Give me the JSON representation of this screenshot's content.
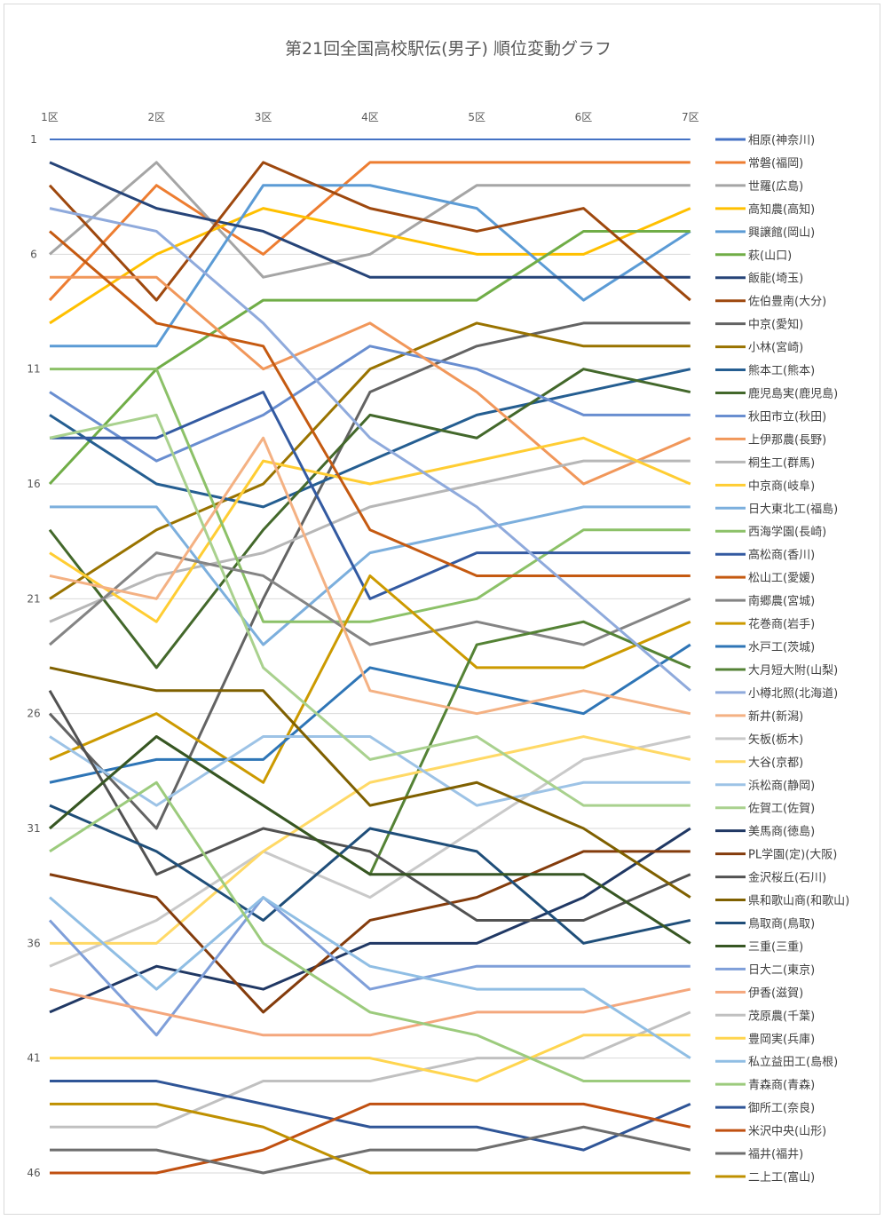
{
  "chart_data": {
    "type": "line",
    "title": "第21回全国高校駅伝(男子) 順位変動グラフ",
    "xlabel": "",
    "ylabel": "",
    "categories": [
      "1区",
      "2区",
      "3区",
      "4区",
      "5区",
      "6区",
      "7区"
    ],
    "y_ticks": [
      "1",
      "6",
      "11",
      "16",
      "21",
      "26",
      "31",
      "36",
      "41",
      "46"
    ],
    "ylim": [
      1,
      46
    ],
    "y_inverted": true,
    "grid": true,
    "legend": "right",
    "series": [
      {
        "name": "相原(神奈川)",
        "color": "#4472C4",
        "values": [
          1,
          1,
          1,
          1,
          1,
          1,
          1
        ]
      },
      {
        "name": "常磐(福岡)",
        "color": "#ED7D31",
        "values": [
          8,
          3,
          6,
          2,
          2,
          2,
          2
        ]
      },
      {
        "name": "世羅(広島)",
        "color": "#A5A5A5",
        "values": [
          6,
          2,
          7,
          6,
          3,
          3,
          3
        ]
      },
      {
        "name": "高知農(高知)",
        "color": "#FFC000",
        "values": [
          9,
          6,
          4,
          5,
          6,
          6,
          4
        ]
      },
      {
        "name": "興譲館(岡山)",
        "color": "#5B9BD5",
        "values": [
          10,
          10,
          3,
          3,
          4,
          8,
          5
        ]
      },
      {
        "name": "萩(山口)",
        "color": "#70AD47",
        "values": [
          16,
          11,
          8,
          8,
          8,
          5,
          5
        ]
      },
      {
        "name": "飯能(埼玉)",
        "color": "#264478",
        "values": [
          2,
          4,
          5,
          7,
          7,
          7,
          7
        ]
      },
      {
        "name": "佐伯豊南(大分)",
        "color": "#9E480E",
        "values": [
          3,
          8,
          2,
          4,
          5,
          4,
          8
        ]
      },
      {
        "name": "中京(愛知)",
        "color": "#636363",
        "values": [
          26,
          31,
          21,
          12,
          10,
          9,
          9
        ]
      },
      {
        "name": "小林(宮崎)",
        "color": "#997300",
        "values": [
          21,
          18,
          16,
          11,
          9,
          10,
          10
        ]
      },
      {
        "name": "熊本工(熊本)",
        "color": "#255E91",
        "values": [
          13,
          16,
          17,
          15,
          13,
          12,
          11
        ]
      },
      {
        "name": "鹿児島実(鹿児島)",
        "color": "#43682B",
        "values": [
          18,
          24,
          18,
          13,
          14,
          11,
          12
        ]
      },
      {
        "name": "秋田市立(秋田)",
        "color": "#698ED0",
        "values": [
          12,
          15,
          13,
          10,
          11,
          13,
          13
        ]
      },
      {
        "name": "上伊那農(長野)",
        "color": "#F1975A",
        "values": [
          7,
          7,
          11,
          9,
          12,
          16,
          14
        ]
      },
      {
        "name": "桐生工(群馬)",
        "color": "#B7B7B7",
        "values": [
          22,
          20,
          19,
          17,
          16,
          15,
          15
        ]
      },
      {
        "name": "中京商(岐阜)",
        "color": "#FFCD33",
        "values": [
          19,
          22,
          15,
          16,
          15,
          14,
          16
        ]
      },
      {
        "name": "日大東北工(福島)",
        "color": "#7CAFDD",
        "values": [
          17,
          17,
          23,
          19,
          18,
          17,
          17
        ]
      },
      {
        "name": "西海学園(長崎)",
        "color": "#8CC168",
        "values": [
          11,
          11,
          22,
          22,
          21,
          18,
          18
        ]
      },
      {
        "name": "高松商(香川)",
        "color": "#335AA1",
        "values": [
          14,
          14,
          12,
          21,
          19,
          19,
          19
        ]
      },
      {
        "name": "松山工(愛媛)",
        "color": "#C55A11",
        "values": [
          5,
          9,
          10,
          18,
          20,
          20,
          20
        ]
      },
      {
        "name": "南郷農(宮城)",
        "color": "#848484",
        "values": [
          23,
          19,
          20,
          23,
          22,
          23,
          21
        ]
      },
      {
        "name": "花巻商(岩手)",
        "color": "#CC9A00",
        "values": [
          28,
          26,
          29,
          20,
          24,
          24,
          22
        ]
      },
      {
        "name": "水戸工(茨城)",
        "color": "#2E75B6",
        "values": [
          29,
          28,
          28,
          24,
          25,
          26,
          23
        ]
      },
      {
        "name": "大月短大附(山梨)",
        "color": "#548235",
        "values": [
          31,
          27,
          30,
          33,
          23,
          22,
          24
        ]
      },
      {
        "name": "小樽北照(北海道)",
        "color": "#8FAADC",
        "values": [
          4,
          5,
          9,
          14,
          17,
          21,
          25
        ]
      },
      {
        "name": "新井(新潟)",
        "color": "#F4B183",
        "values": [
          20,
          21,
          14,
          25,
          26,
          25,
          26
        ]
      },
      {
        "name": "矢板(栃木)",
        "color": "#C9C9C9",
        "values": [
          37,
          35,
          32,
          34,
          31,
          28,
          27
        ]
      },
      {
        "name": "大谷(京都)",
        "color": "#FFD966",
        "values": [
          36,
          36,
          32,
          29,
          28,
          27,
          28
        ]
      },
      {
        "name": "浜松商(静岡)",
        "color": "#9DC3E6",
        "values": [
          27,
          30,
          27,
          27,
          30,
          29,
          29
        ]
      },
      {
        "name": "佐賀工(佐賀)",
        "color": "#A9D18E",
        "values": [
          14,
          13,
          24,
          28,
          27,
          30,
          30
        ]
      },
      {
        "name": "美馬商(徳島)",
        "color": "#203864",
        "values": [
          39,
          37,
          38,
          36,
          36,
          34,
          31
        ]
      },
      {
        "name": "PL学園(定)(大阪)",
        "color": "#843C0C",
        "values": [
          33,
          34,
          39,
          35,
          34,
          32,
          32
        ]
      },
      {
        "name": "金沢桜丘(石川)",
        "color": "#525252",
        "values": [
          25,
          33,
          31,
          32,
          35,
          35,
          33
        ]
      },
      {
        "name": "県和歌山商(和歌山)",
        "color": "#7F6000",
        "values": [
          24,
          25,
          25,
          30,
          29,
          31,
          34
        ]
      },
      {
        "name": "鳥取商(鳥取)",
        "color": "#1F4E79",
        "values": [
          30,
          32,
          35,
          31,
          32,
          36,
          35
        ]
      },
      {
        "name": "三重(三重)",
        "color": "#375623",
        "values": [
          31,
          27,
          30,
          33,
          33,
          33,
          36
        ]
      },
      {
        "name": "日大二(東京)",
        "color": "#7F9FD9",
        "values": [
          35,
          40,
          34,
          38,
          37,
          37,
          37
        ]
      },
      {
        "name": "伊香(滋賀)",
        "color": "#F4A77D",
        "values": [
          38,
          39,
          40,
          40,
          39,
          39,
          38
        ]
      },
      {
        "name": "茂原農(千葉)",
        "color": "#C0C0C0",
        "values": [
          44,
          44,
          42,
          42,
          41,
          41,
          39
        ]
      },
      {
        "name": "豊岡実(兵庫)",
        "color": "#FFD54F",
        "values": [
          41,
          41,
          41,
          41,
          42,
          40,
          40
        ]
      },
      {
        "name": "私立益田工(島根)",
        "color": "#90BEE4",
        "values": [
          34,
          38,
          34,
          37,
          38,
          38,
          41
        ]
      },
      {
        "name": "青森商(青森)",
        "color": "#9CCB7D",
        "values": [
          32,
          29,
          36,
          39,
          40,
          42,
          42
        ]
      },
      {
        "name": "御所工(奈良)",
        "color": "#2F5597",
        "values": [
          42,
          42,
          43,
          44,
          44,
          45,
          43
        ]
      },
      {
        "name": "米沢中央(山形)",
        "color": "#C05011",
        "values": [
          46,
          46,
          45,
          43,
          43,
          43,
          44
        ]
      },
      {
        "name": "福井(福井)",
        "color": "#6E6E6E",
        "values": [
          45,
          45,
          46,
          45,
          45,
          44,
          45
        ]
      },
      {
        "name": "二上工(富山)",
        "color": "#BF9000",
        "values": [
          43,
          43,
          44,
          46,
          46,
          46,
          46
        ]
      }
    ]
  }
}
